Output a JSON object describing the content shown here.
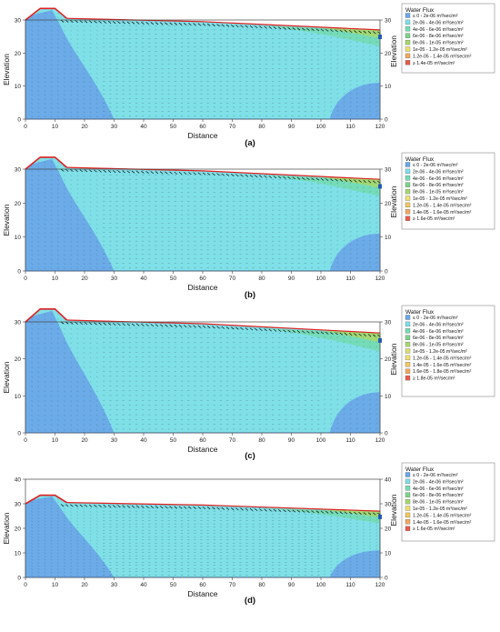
{
  "panels": [
    {
      "label": "(a)",
      "x_axis_label": "Distance",
      "y_axis_label": "Elevation",
      "right_axis_label": "Elevation",
      "x_ticks": [
        0,
        10,
        20,
        30,
        40,
        50,
        60,
        70,
        80,
        90,
        100,
        110,
        120
      ],
      "y_ticks": [
        0,
        10,
        20,
        30
      ],
      "legend_title": "Water Flux",
      "legend_items": [
        {
          "label": "≤ 0 - 2e-06 m³/sec/m²",
          "color": "#6aa8e8"
        },
        {
          "label": "2e-06 - 4e-06 m³/sec/m²",
          "color": "#7fe0e8"
        },
        {
          "label": "4e-06 - 6e-06 m³/sec/m²",
          "color": "#74dcb4"
        },
        {
          "label": "6e-06 - 8e-06 m³/sec/m²",
          "color": "#7cd48a"
        },
        {
          "label": "8e-06 - 1e-05 m³/sec/m²",
          "color": "#a6d86e"
        },
        {
          "label": "1e-05 - 1.2e-05 m³/sec/m²",
          "color": "#f0e070"
        },
        {
          "label": "1.2e-05 - 1.4e-05 m³/sec/m²",
          "color": "#f2a860"
        },
        {
          "label": "≥ 1.4e-05 m³/sec/m²",
          "color": "#e85a4a"
        }
      ]
    },
    {
      "label": "(b)",
      "x_axis_label": "Distance",
      "y_axis_label": "Elevation",
      "right_axis_label": "Elevation",
      "x_ticks": [
        0,
        10,
        20,
        30,
        40,
        50,
        60,
        70,
        80,
        90,
        100,
        110,
        120
      ],
      "y_ticks": [
        0,
        10,
        20,
        30
      ],
      "legend_title": "Water Flux",
      "legend_items": [
        {
          "label": "≤ 0 - 2e-06 m³/sec/m²",
          "color": "#6aa8e8"
        },
        {
          "label": "2e-06 - 4e-06 m³/sec/m²",
          "color": "#7fe0e8"
        },
        {
          "label": "4e-06 - 6e-06 m³/sec/m²",
          "color": "#74dcb4"
        },
        {
          "label": "6e-06 - 8e-06 m³/sec/m²",
          "color": "#7cd48a"
        },
        {
          "label": "8e-06 - 1e-05 m³/sec/m²",
          "color": "#a6d86e"
        },
        {
          "label": "1e-05 - 1.2e-05 m³/sec/m²",
          "color": "#f0e070"
        },
        {
          "label": "1.2e-05 - 1.4e-05 m³/sec/m²",
          "color": "#f2c860"
        },
        {
          "label": "1.4e-05 - 1.6e-05 m³/sec/m²",
          "color": "#f2a860"
        },
        {
          "label": "≥ 1.6e-05 m³/sec/m²",
          "color": "#e85a4a"
        }
      ]
    },
    {
      "label": "(c)",
      "x_axis_label": "Distance",
      "y_axis_label": "Elevation",
      "right_axis_label": "Elevation",
      "x_ticks": [
        0,
        10,
        20,
        30,
        40,
        50,
        60,
        70,
        80,
        90,
        100,
        110,
        120
      ],
      "y_ticks": [
        0,
        10,
        20,
        30
      ],
      "legend_title": "Water Flux",
      "legend_items": [
        {
          "label": "≤ 0 - 2e-06 m³/sec/m²",
          "color": "#6aa8e8"
        },
        {
          "label": "2e-06 - 4e-06 m³/sec/m²",
          "color": "#7fe0e8"
        },
        {
          "label": "4e-06 - 6e-06 m³/sec/m²",
          "color": "#74dcb4"
        },
        {
          "label": "6e-06 - 8e-06 m³/sec/m²",
          "color": "#7cd48a"
        },
        {
          "label": "8e-06 - 1e-05 m³/sec/m²",
          "color": "#a6d86e"
        },
        {
          "label": "1e-05 - 1.2e-05 m³/sec/m²",
          "color": "#d8e070"
        },
        {
          "label": "1.2e-05 - 1.4e-05 m³/sec/m²",
          "color": "#f0e070"
        },
        {
          "label": "1.4e-05 - 1.6e-05 m³/sec/m²",
          "color": "#f2c860"
        },
        {
          "label": "1.6e-05 - 1.8e-05 m³/sec/m²",
          "color": "#f2a860"
        },
        {
          "label": "≥ 1.8e-05 m³/sec/m²",
          "color": "#e85a4a"
        }
      ]
    },
    {
      "label": "(d)",
      "x_axis_label": "Distance",
      "y_axis_label": "Elevation",
      "right_axis_label": "Elevation",
      "x_ticks": [
        0,
        10,
        20,
        30,
        40,
        50,
        60,
        70,
        80,
        90,
        100,
        110,
        120
      ],
      "y_ticks": [
        0,
        10,
        20,
        30,
        40
      ],
      "legend_title": "Water Flux",
      "legend_items": [
        {
          "label": "≤ 0 - 2e-06 m³/sec/m²",
          "color": "#6aa8e8"
        },
        {
          "label": "2e-06 - 4e-06 m³/sec/m²",
          "color": "#7fe0e8"
        },
        {
          "label": "4e-06 - 6e-06 m³/sec/m²",
          "color": "#74dcb4"
        },
        {
          "label": "6e-06 - 8e-06 m³/sec/m²",
          "color": "#7cd48a"
        },
        {
          "label": "8e-06 - 1e-05 m³/sec/m²",
          "color": "#a6d86e"
        },
        {
          "label": "1e-05 - 1.2e-05 m³/sec/m²",
          "color": "#f0e070"
        },
        {
          "label": "1.2e-05 - 1.4e-05 m³/sec/m²",
          "color": "#f2c860"
        },
        {
          "label": "1.4e-05 - 1.6e-05 m³/sec/m²",
          "color": "#f2a860"
        },
        {
          "label": "≥ 1.6e-05 m³/sec/m²",
          "color": "#e85a4a"
        }
      ]
    }
  ],
  "colors": {
    "low_flux": "#6aa8e8",
    "mid_flux": "#7fe0e8",
    "boundary_red": "#e02020",
    "head_marker": "#1f5fd0"
  }
}
